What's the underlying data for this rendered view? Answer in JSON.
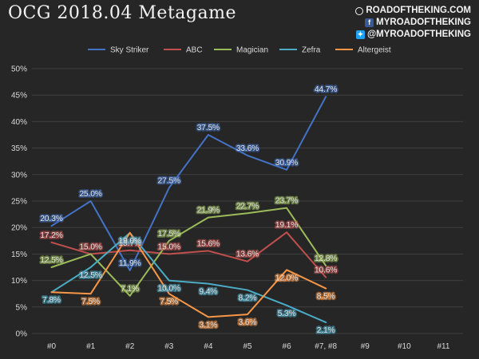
{
  "header": {
    "title": "OCG 2018.04 Metagame",
    "branding": [
      "ROADOFTHEKING.COM",
      "MYROADOFTHEKING",
      "@MYROADOFTHEKING"
    ]
  },
  "colors": {
    "background": "#262626",
    "grid": "#404040",
    "text": "#d9d9d9",
    "Sky Striker": "#4472c4",
    "ABC": "#c0504d",
    "Magician": "#9bbb59",
    "Zefra": "#4bacc6",
    "Altergeist": "#f79646"
  },
  "chart_data": {
    "type": "line",
    "title": "OCG 2018.04 Metagame",
    "xlabel": "",
    "ylabel": "",
    "ylim": [
      0,
      50
    ],
    "yticks": [
      "0%",
      "5%",
      "10%",
      "15%",
      "20%",
      "25%",
      "30%",
      "35%",
      "40%",
      "45%",
      "50%"
    ],
    "categories": [
      "#0",
      "#1",
      "#2",
      "#3",
      "#4",
      "#5",
      "#6",
      "#7, #8",
      "#9",
      "#10",
      "#11"
    ],
    "grid": true,
    "legend_position": "top",
    "series": [
      {
        "name": "Sky Striker",
        "values": [
          20.3,
          25.0,
          11.9,
          27.5,
          37.5,
          33.6,
          30.9,
          44.7,
          null,
          null,
          null
        ],
        "labels": [
          "20.3%",
          "25.0%",
          "11.9%",
          "27.5%",
          "37.5%",
          "33.6%",
          "30.9%",
          "44.7%",
          "",
          "",
          ""
        ]
      },
      {
        "name": "ABC",
        "values": [
          17.2,
          15.0,
          15.7,
          15.0,
          15.6,
          13.6,
          19.1,
          10.6,
          null,
          null,
          null
        ],
        "labels": [
          "17.2%",
          "15.0%",
          "15.7%",
          "15.0%",
          "15.6%",
          "13.6%",
          "19.1%",
          "10.6%",
          "",
          "",
          ""
        ]
      },
      {
        "name": "Magician",
        "values": [
          12.5,
          15.0,
          7.1,
          17.5,
          21.9,
          22.7,
          23.7,
          12.8,
          null,
          null,
          null
        ],
        "labels": [
          "12.5%",
          "",
          "7.1%",
          "17.5%",
          "21.9%",
          "22.7%",
          "23.7%",
          "12.8%",
          "",
          "",
          ""
        ]
      },
      {
        "name": "Zefra",
        "values": [
          7.8,
          12.5,
          19.0,
          10.0,
          9.4,
          8.2,
          5.3,
          2.1,
          null,
          null,
          null
        ],
        "labels": [
          "7.8%",
          "12.5%",
          "19.0%",
          "10.0%",
          "9.4%",
          "8.2%",
          "5.3%",
          "2.1%",
          "",
          "",
          ""
        ]
      },
      {
        "name": "Altergeist",
        "values": [
          7.8,
          7.5,
          19.0,
          7.5,
          3.1,
          3.6,
          12.0,
          8.5,
          null,
          null,
          null
        ],
        "labels": [
          "",
          "7.5%",
          "",
          "7.5%",
          "3.1%",
          "3.6%",
          "12.0%",
          "8.5%",
          "",
          "",
          ""
        ]
      }
    ]
  }
}
